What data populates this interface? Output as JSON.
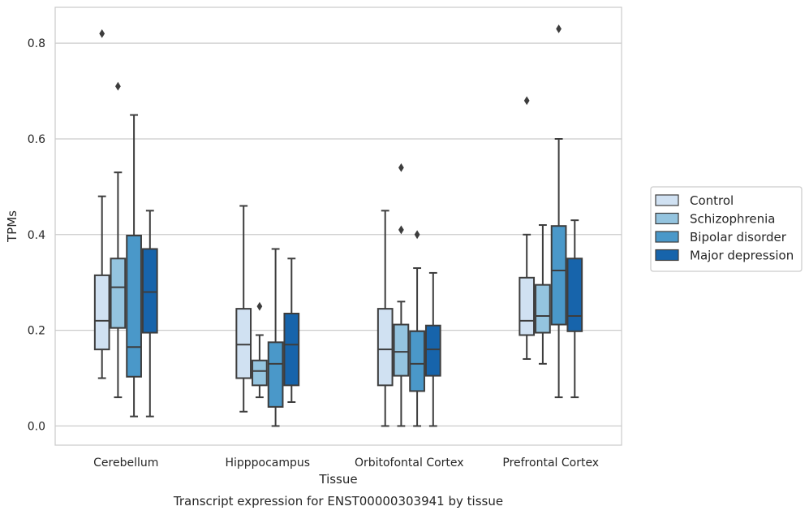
{
  "chart_data": {
    "type": "box",
    "caption": "Transcript expression for ENST00000303941 by tissue",
    "xlabel": "Tissue",
    "ylabel": "TPMs",
    "ylim": [
      -0.04,
      0.875
    ],
    "yticks": [
      0.0,
      0.2,
      0.4,
      0.6,
      0.8
    ],
    "ytick_labels": [
      "0.0",
      "0.2",
      "0.4",
      "0.6",
      "0.8"
    ],
    "grid": "horizontal",
    "legend_position": "right-outside",
    "categories": [
      "Cerebellum",
      "Hipppocampus",
      "Orbitofontal Cortex",
      "Prefrontal Cortex"
    ],
    "series": [
      {
        "name": "Control",
        "color": "#d0e1f2",
        "boxes": [
          {
            "whislo": 0.1,
            "q1": 0.16,
            "med": 0.22,
            "q3": 0.315,
            "whishi": 0.48,
            "fliers": [
              0.82
            ]
          },
          {
            "whislo": 0.03,
            "q1": 0.1,
            "med": 0.17,
            "q3": 0.245,
            "whishi": 0.46,
            "fliers": []
          },
          {
            "whislo": 0.0,
            "q1": 0.085,
            "med": 0.16,
            "q3": 0.245,
            "whishi": 0.45,
            "fliers": []
          },
          {
            "whislo": 0.14,
            "q1": 0.19,
            "med": 0.22,
            "q3": 0.31,
            "whishi": 0.4,
            "fliers": [
              0.68
            ]
          }
        ]
      },
      {
        "name": "Schizophrenia",
        "color": "#94c4df",
        "boxes": [
          {
            "whislo": 0.06,
            "q1": 0.205,
            "med": 0.29,
            "q3": 0.35,
            "whishi": 0.53,
            "fliers": [
              0.71
            ]
          },
          {
            "whislo": 0.06,
            "q1": 0.085,
            "med": 0.115,
            "q3": 0.137,
            "whishi": 0.19,
            "fliers": [
              0.25
            ]
          },
          {
            "whislo": 0.0,
            "q1": 0.105,
            "med": 0.155,
            "q3": 0.212,
            "whishi": 0.26,
            "fliers": [
              0.41,
              0.54
            ]
          },
          {
            "whislo": 0.13,
            "q1": 0.195,
            "med": 0.23,
            "q3": 0.295,
            "whishi": 0.42,
            "fliers": []
          }
        ]
      },
      {
        "name": "Bipolar disorder",
        "color": "#4a98c9",
        "boxes": [
          {
            "whislo": 0.02,
            "q1": 0.103,
            "med": 0.165,
            "q3": 0.398,
            "whishi": 0.65,
            "fliers": []
          },
          {
            "whislo": 0.0,
            "q1": 0.04,
            "med": 0.13,
            "q3": 0.175,
            "whishi": 0.37,
            "fliers": []
          },
          {
            "whislo": 0.0,
            "q1": 0.073,
            "med": 0.13,
            "q3": 0.198,
            "whishi": 0.33,
            "fliers": [
              0.4
            ]
          },
          {
            "whislo": 0.06,
            "q1": 0.212,
            "med": 0.325,
            "q3": 0.418,
            "whishi": 0.6,
            "fliers": [
              0.83
            ]
          }
        ]
      },
      {
        "name": "Major depression",
        "color": "#1764ab",
        "boxes": [
          {
            "whislo": 0.02,
            "q1": 0.195,
            "med": 0.28,
            "q3": 0.37,
            "whishi": 0.45,
            "fliers": []
          },
          {
            "whislo": 0.05,
            "q1": 0.085,
            "med": 0.17,
            "q3": 0.235,
            "whishi": 0.35,
            "fliers": []
          },
          {
            "whislo": 0.0,
            "q1": 0.105,
            "med": 0.16,
            "q3": 0.21,
            "whishi": 0.32,
            "fliers": []
          },
          {
            "whislo": 0.06,
            "q1": 0.198,
            "med": 0.23,
            "q3": 0.35,
            "whishi": 0.43,
            "fliers": []
          }
        ]
      }
    ]
  }
}
